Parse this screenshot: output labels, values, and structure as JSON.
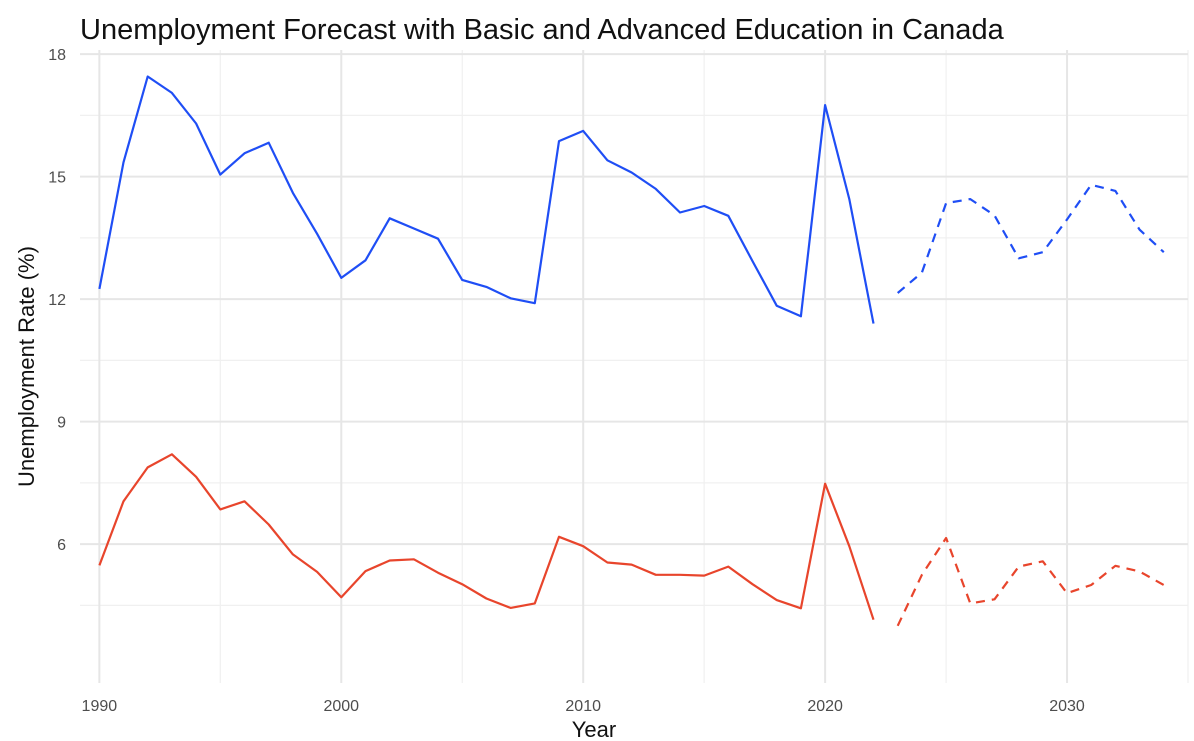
{
  "chart_data": {
    "type": "line",
    "title": "Unemployment Forecast with Basic and Advanced Education in Canada",
    "xlabel": "Year",
    "ylabel": "Unemployment Rate (%)",
    "xlim": [
      1989.2,
      2035
    ],
    "ylim": [
      2.6,
      18.1
    ],
    "x_ticks": [
      1990,
      2000,
      2010,
      2020,
      2030
    ],
    "y_ticks": [
      6,
      9,
      12,
      15,
      18
    ],
    "grid": true,
    "legend": "none",
    "series": [
      {
        "color": "#1f4ef5",
        "style": "solid",
        "x": [
          1990,
          1991,
          1992,
          1993,
          1994,
          1995,
          1996,
          1997,
          1998,
          1999,
          2000,
          2001,
          2002,
          2003,
          2004,
          2005,
          2006,
          2007,
          2008,
          2009,
          2010,
          2011,
          2012,
          2013,
          2014,
          2015,
          2016,
          2017,
          2018,
          2019,
          2020,
          2021,
          2022
        ],
        "values": [
          12.25,
          15.35,
          17.45,
          17.05,
          16.3,
          15.05,
          15.57,
          15.83,
          14.6,
          13.6,
          12.52,
          12.95,
          13.98,
          13.73,
          13.48,
          12.47,
          12.3,
          12.02,
          11.9,
          15.87,
          16.12,
          15.4,
          15.1,
          14.7,
          14.12,
          14.28,
          14.04,
          12.93,
          11.84,
          11.58,
          16.75,
          14.45,
          11.4
        ]
      },
      {
        "color": "#1f4ef5",
        "style": "dashed",
        "x": [
          2023,
          2024,
          2025,
          2026,
          2027,
          2028,
          2029,
          2030,
          2031,
          2032,
          2033,
          2034
        ],
        "values": [
          12.15,
          12.65,
          14.35,
          14.45,
          14.05,
          13.0,
          13.15,
          13.95,
          14.8,
          14.65,
          13.7,
          13.15
        ]
      },
      {
        "color": "#e8452c",
        "style": "solid",
        "x": [
          1990,
          1991,
          1992,
          1993,
          1994,
          1995,
          1996,
          1997,
          1998,
          1999,
          2000,
          2001,
          2002,
          2003,
          2004,
          2005,
          2006,
          2007,
          2008,
          2009,
          2010,
          2011,
          2012,
          2013,
          2014,
          2015,
          2016,
          2017,
          2018,
          2019,
          2020,
          2021,
          2022
        ],
        "values": [
          5.48,
          7.05,
          7.88,
          8.2,
          7.65,
          6.85,
          7.05,
          6.48,
          5.75,
          5.32,
          4.7,
          5.34,
          5.6,
          5.63,
          5.3,
          5.02,
          4.67,
          4.44,
          4.55,
          6.18,
          5.95,
          5.55,
          5.5,
          5.25,
          5.25,
          5.23,
          5.45,
          5.02,
          4.63,
          4.43,
          7.48,
          5.95,
          4.15
        ]
      },
      {
        "color": "#e8452c",
        "style": "dashed",
        "x": [
          2023,
          2024,
          2025,
          2026,
          2027,
          2028,
          2029,
          2030,
          2031,
          2032,
          2033,
          2034
        ],
        "values": [
          4.0,
          5.25,
          6.15,
          4.55,
          4.65,
          5.45,
          5.58,
          4.8,
          5.0,
          5.47,
          5.33,
          5.0
        ]
      }
    ]
  }
}
